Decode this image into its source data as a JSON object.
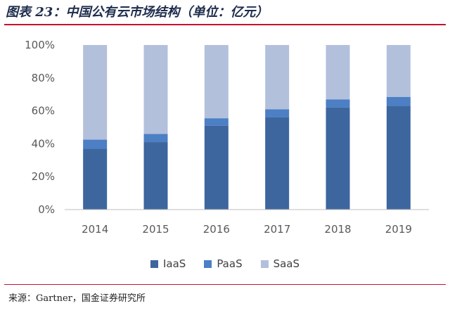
{
  "title": "图表 23：中国公有云市场结构（单位：亿元）",
  "source": "来源：Gartner，国金证券研究所",
  "colors": {
    "IaaS": "#3d669f",
    "PaaS": "#4c7fc4",
    "SaaS": "#b3c0dc",
    "title_rule": "#c8102e"
  },
  "chart_data": {
    "type": "bar",
    "stacked": true,
    "categories": [
      "2014",
      "2015",
      "2016",
      "2017",
      "2018",
      "2019"
    ],
    "series": [
      {
        "name": "IaaS",
        "values": [
          37,
          41,
          51,
          56,
          62,
          63
        ]
      },
      {
        "name": "PaaS",
        "values": [
          5.5,
          5,
          4.5,
          5,
          5,
          5.5
        ]
      },
      {
        "name": "SaaS",
        "values": [
          57.5,
          54,
          44.5,
          39,
          33,
          31.5
        ]
      }
    ],
    "ylim": [
      0,
      100
    ],
    "yticks": [
      "0%",
      "20%",
      "40%",
      "60%",
      "80%",
      "100%"
    ],
    "legend_position": "bottom",
    "grid": false
  }
}
